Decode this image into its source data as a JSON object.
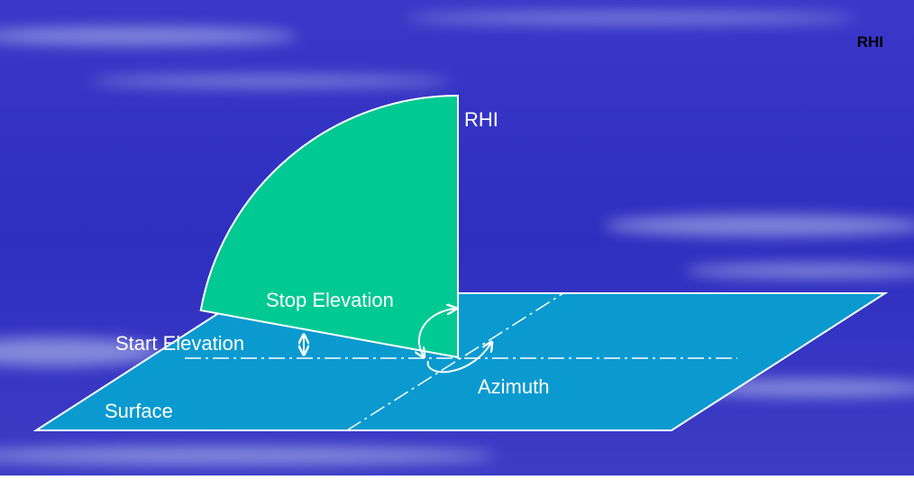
{
  "title": "RHI",
  "labels": {
    "scan": "RHI",
    "stop_elevation": "Stop Elevation",
    "start_elevation": "Start Elevation",
    "azimuth": "Azimuth",
    "surface": "Surface"
  }
}
